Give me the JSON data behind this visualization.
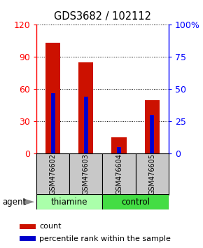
{
  "title": "GDS3682 / 102112",
  "samples": [
    "GSM476602",
    "GSM476603",
    "GSM476604",
    "GSM476605"
  ],
  "count_values": [
    103,
    85,
    15,
    50
  ],
  "percentile_values": [
    47,
    44,
    5,
    30
  ],
  "left_ylim": [
    0,
    120
  ],
  "right_ylim": [
    0,
    100
  ],
  "left_yticks": [
    0,
    30,
    60,
    90,
    120
  ],
  "right_yticks": [
    0,
    25,
    50,
    75,
    100
  ],
  "right_yticklabels": [
    "0",
    "25",
    "50",
    "75",
    "100%"
  ],
  "bar_color": "#CC1100",
  "percentile_color": "#0000CC",
  "bar_width": 0.45,
  "percentile_bar_width": 0.12,
  "sample_area_color": "#C8C8C8",
  "thiamine_color": "#AAFFAA",
  "control_color": "#44DD44",
  "agent_label": "agent",
  "legend_count_label": "count",
  "legend_percentile_label": "percentile rank within the sample",
  "left_tick_color": "red",
  "right_tick_color": "blue"
}
